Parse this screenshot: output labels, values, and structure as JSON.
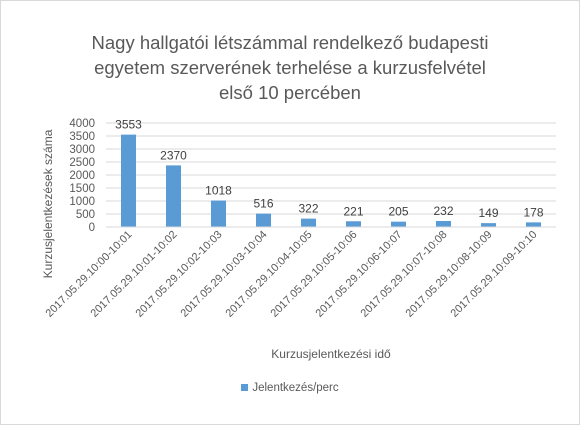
{
  "chart": {
    "title_lines": [
      "Nagy hallgatói létszámmal rendelkező budapesti",
      "egyetem szerverének terhelése a kurzusfelvétel",
      "első 10 percében"
    ],
    "bar_color": "#5b9bd5",
    "text_color": "#595959",
    "grid_color": "#d9d9d9"
  },
  "chart_data": {
    "type": "bar",
    "title": "Nagy hallgatói létszámmal rendelkező budapesti egyetem szerverének terhelése a kurzusfelvétel első 10 percében",
    "xlabel": "Kurzusjelentkezési idő",
    "ylabel": "Kurzusjelentkezések száma",
    "categories": [
      "2017.05.29.10:00-10:01",
      "2017.05.29.10:01-10:02",
      "2017.05.29.10:02-10:03",
      "2017.05.29.10:03-10:04",
      "2017.05.29.10:04-10:05",
      "2017.05.29.10:05-10:06",
      "2017.05.29.10:06-10:07",
      "2017.05.29.10:07-10:08",
      "2017.05.29.10:08-10:09",
      "2017.05.29.10:09-10:10"
    ],
    "series": [
      {
        "name": "Jelentkezés/perc",
        "values": [
          3553,
          2370,
          1018,
          516,
          322,
          221,
          205,
          232,
          149,
          178
        ]
      }
    ],
    "ylim": [
      0,
      4000
    ],
    "yticks": [
      0,
      500,
      1000,
      1500,
      2000,
      2500,
      3000,
      3500,
      4000
    ],
    "grid": true,
    "legend": "bottom",
    "data_labels": true
  }
}
